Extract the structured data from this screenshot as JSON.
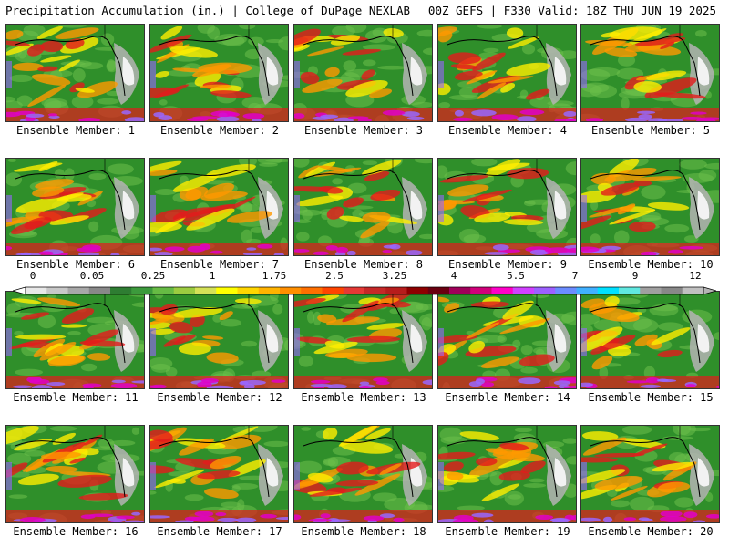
{
  "header": {
    "left_title": "Precipitation Accumulation (in.) | College of DuPage NEXLAB",
    "right_title": "00Z GEFS | F330 Valid: 18Z THU JUN 19 2025"
  },
  "panels": [
    {
      "label": "Ensemble Member: 1"
    },
    {
      "label": "Ensemble Member: 2"
    },
    {
      "label": "Ensemble Member: 3"
    },
    {
      "label": "Ensemble Member: 4"
    },
    {
      "label": "Ensemble Member: 5"
    },
    {
      "label": "Ensemble Member: 6"
    },
    {
      "label": "Ensemble Member: 7"
    },
    {
      "label": "Ensemble Member: 8"
    },
    {
      "label": "Ensemble Member: 9"
    },
    {
      "label": "Ensemble Member: 10"
    },
    {
      "label": "Ensemble Member: 11"
    },
    {
      "label": "Ensemble Member: 12"
    },
    {
      "label": "Ensemble Member: 13"
    },
    {
      "label": "Ensemble Member: 14"
    },
    {
      "label": "Ensemble Member: 15"
    },
    {
      "label": "Ensemble Member: 16"
    },
    {
      "label": "Ensemble Member: 17"
    },
    {
      "label": "Ensemble Member: 18"
    },
    {
      "label": "Ensemble Member: 19"
    },
    {
      "label": "Ensemble Member: 20"
    }
  ],
  "colorbar": {
    "tick_labels": [
      "0",
      "0.05",
      "0.25",
      "1",
      "1.75",
      "2.5",
      "3.25",
      "4",
      "5.5",
      "7",
      "9",
      "12"
    ],
    "colors": [
      "#e8e8e8",
      "#c8c8c8",
      "#a8a8a8",
      "#888888",
      "#2e7d32",
      "#3c9a3c",
      "#66bb44",
      "#9ccc40",
      "#d4e157",
      "#ffff00",
      "#ffd600",
      "#ffb300",
      "#ff8f00",
      "#ff6f00",
      "#ff4500",
      "#e53935",
      "#c62828",
      "#b71c1c",
      "#8e0000",
      "#6a0010",
      "#a0005a",
      "#d0007a",
      "#ff00c8",
      "#d040ff",
      "#9c60ff",
      "#6b8cff",
      "#40b0ff",
      "#00e0ff",
      "#60e8e0",
      "#a0a0a0",
      "#888888",
      "#c0c0c0"
    ]
  },
  "palette": {
    "land_green": "#2f8f2a",
    "light_green": "#6cc04a",
    "yellow": "#ffee00",
    "orange": "#ff9900",
    "red": "#e41a1c",
    "magenta": "#e000c8",
    "purple": "#9966ff",
    "gray": "#b4b4b4",
    "white": "#f2f2f2"
  }
}
